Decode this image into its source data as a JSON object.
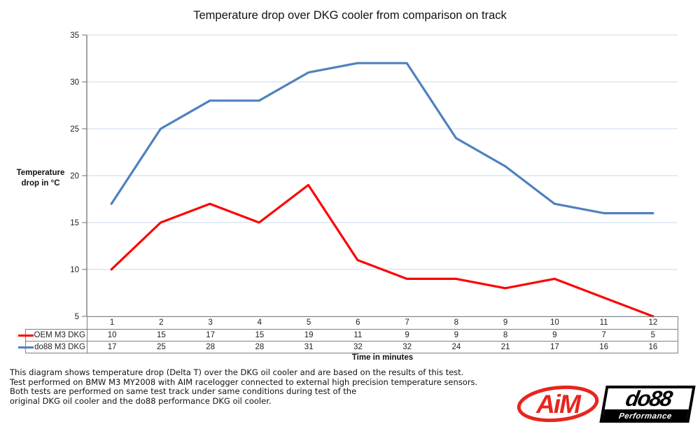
{
  "title": "Temperature drop over DKG cooler from comparison on track",
  "chart_data": {
    "type": "line",
    "categories": [
      1,
      2,
      3,
      4,
      5,
      6,
      7,
      8,
      9,
      10,
      11,
      12
    ],
    "series": [
      {
        "name": "OEM M3 DKG",
        "color": "#fe0000",
        "values": [
          10,
          15,
          17,
          15,
          19,
          11,
          9,
          9,
          8,
          9,
          7,
          5
        ]
      },
      {
        "name": "do88 M3 DKG",
        "color": "#4f81bd",
        "values": [
          17,
          25,
          28,
          28,
          31,
          32,
          32,
          24,
          21,
          17,
          16,
          16
        ]
      }
    ],
    "title": "Temperature drop over DKG cooler from comparison on track",
    "xlabel": "Time in minutes",
    "ylabel": "Temperature drop in °C",
    "ylim": [
      5,
      35
    ],
    "ytick_step": 5,
    "grid": "horizontal",
    "legend_position": "table-left"
  },
  "colors": {
    "gridline": "#c9d8ee",
    "axis": "#6f6f6f",
    "table_border": "#7f7f7f",
    "oem_red": "#fe0000",
    "do88_blue": "#4f81bd",
    "aim_red": "#e8251d",
    "do88_black": "#000000"
  },
  "footer": {
    "lines": [
      "This diagram shows temperature drop (Delta T) over the DKG oil cooler and are based on the results of this test.",
      "Test performed on BMW M3 MY2008 with AIM racelogger connected to external high precision temperature sensors.",
      "Both tests are performed on same test track under same conditions during test of the",
      "original DKG oil cooler and the do88 performance DKG oil cooler."
    ]
  },
  "logos": {
    "aim": {
      "text": "AiM"
    },
    "do88": {
      "text": "do88",
      "subtext": "Performance"
    }
  }
}
